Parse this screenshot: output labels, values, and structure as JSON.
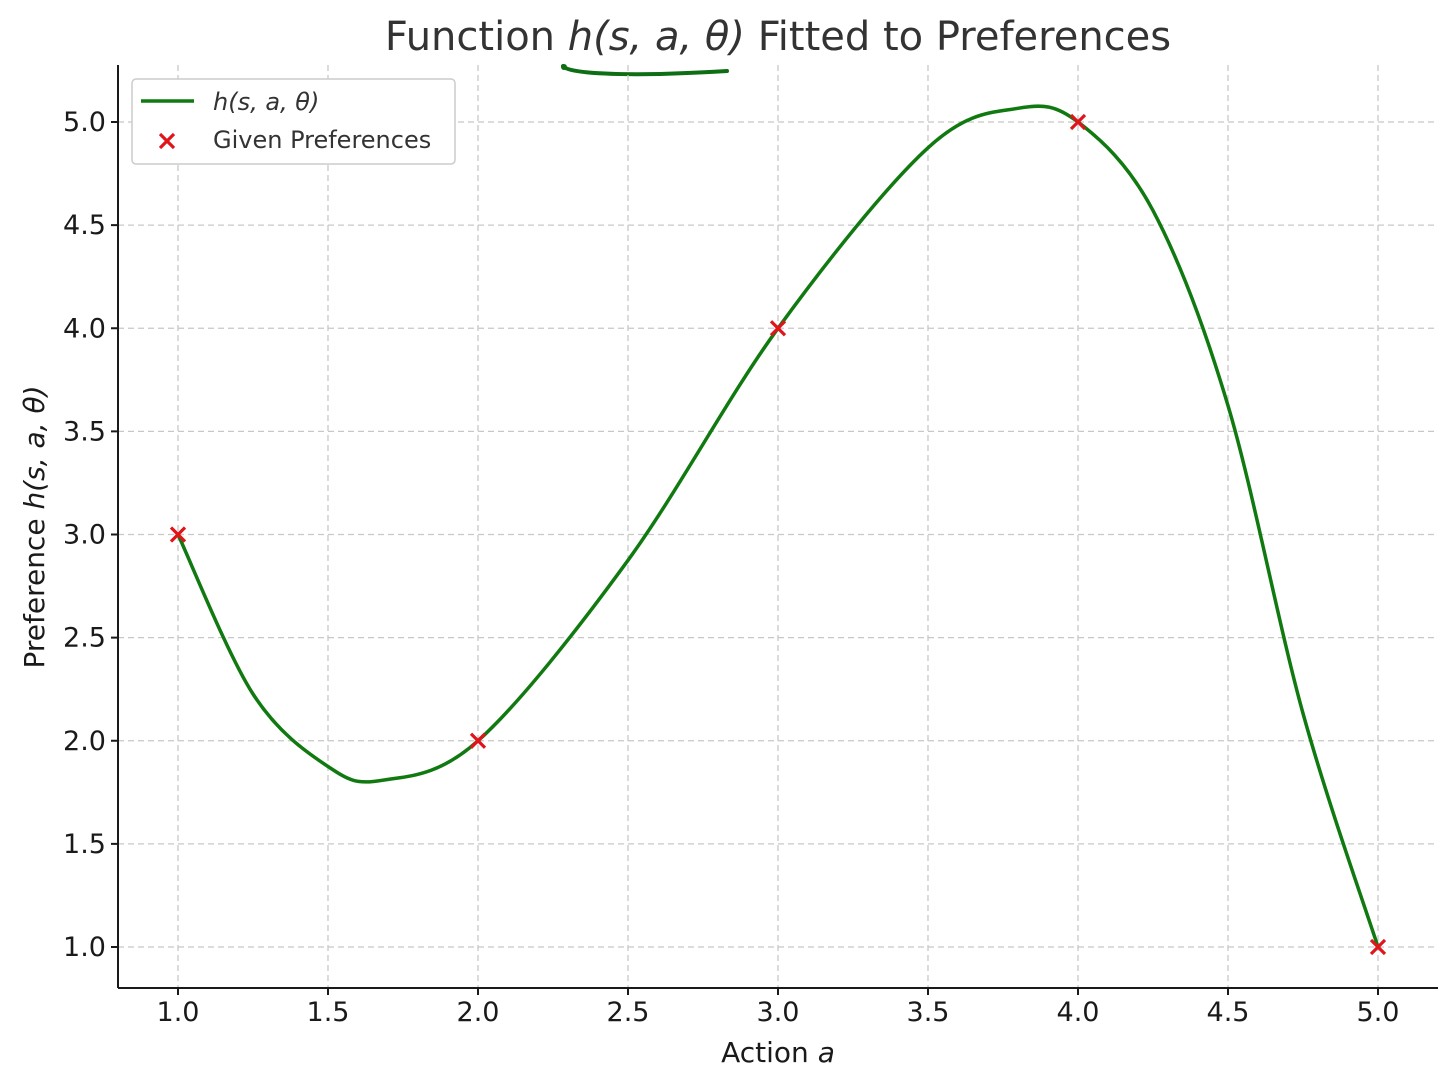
{
  "chart_data": {
    "type": "line",
    "title": {
      "prefix": "Function ",
      "math": "h(s, a, θ)",
      "suffix": " Fitted to Preferences"
    },
    "xlabel": {
      "text": "Action ",
      "math": "a"
    },
    "ylabel": {
      "text": "Preference ",
      "math": "h(s, a, θ)"
    },
    "xlim": [
      0.8,
      5.2
    ],
    "ylim": [
      0.8,
      5.27
    ],
    "xticks": [
      "1.0",
      "1.5",
      "2.0",
      "2.5",
      "3.0",
      "3.5",
      "4.0",
      "4.5",
      "5.0"
    ],
    "yticks": [
      "1.0",
      "1.5",
      "2.0",
      "2.5",
      "3.0",
      "3.5",
      "4.0",
      "4.5",
      "5.0"
    ],
    "grid": true,
    "legend_position": "top-left",
    "series": [
      {
        "name": "h(s, a, θ)",
        "kind": "line",
        "color": "#107a10",
        "x": [
          1.0,
          1.25,
          1.5,
          1.68,
          2.0,
          2.5,
          3.0,
          3.5,
          3.8,
          4.0,
          4.25,
          4.5,
          4.75,
          5.0
        ],
        "y": [
          3.0,
          2.2266,
          1.875,
          1.8084,
          2.0,
          2.875,
          4.0,
          4.875,
          5.0664,
          5.0,
          4.5703,
          3.625,
          2.1328,
          1.0
        ]
      },
      {
        "name": "Given Preferences",
        "kind": "scatter",
        "marker": "x",
        "color": "#e0141a",
        "x": [
          1.0,
          2.0,
          3.0,
          4.0,
          5.0
        ],
        "y": [
          3.0,
          2.0,
          4.0,
          5.0,
          1.0
        ]
      }
    ],
    "annotations": {
      "underline_color": "#0e6e14"
    }
  }
}
